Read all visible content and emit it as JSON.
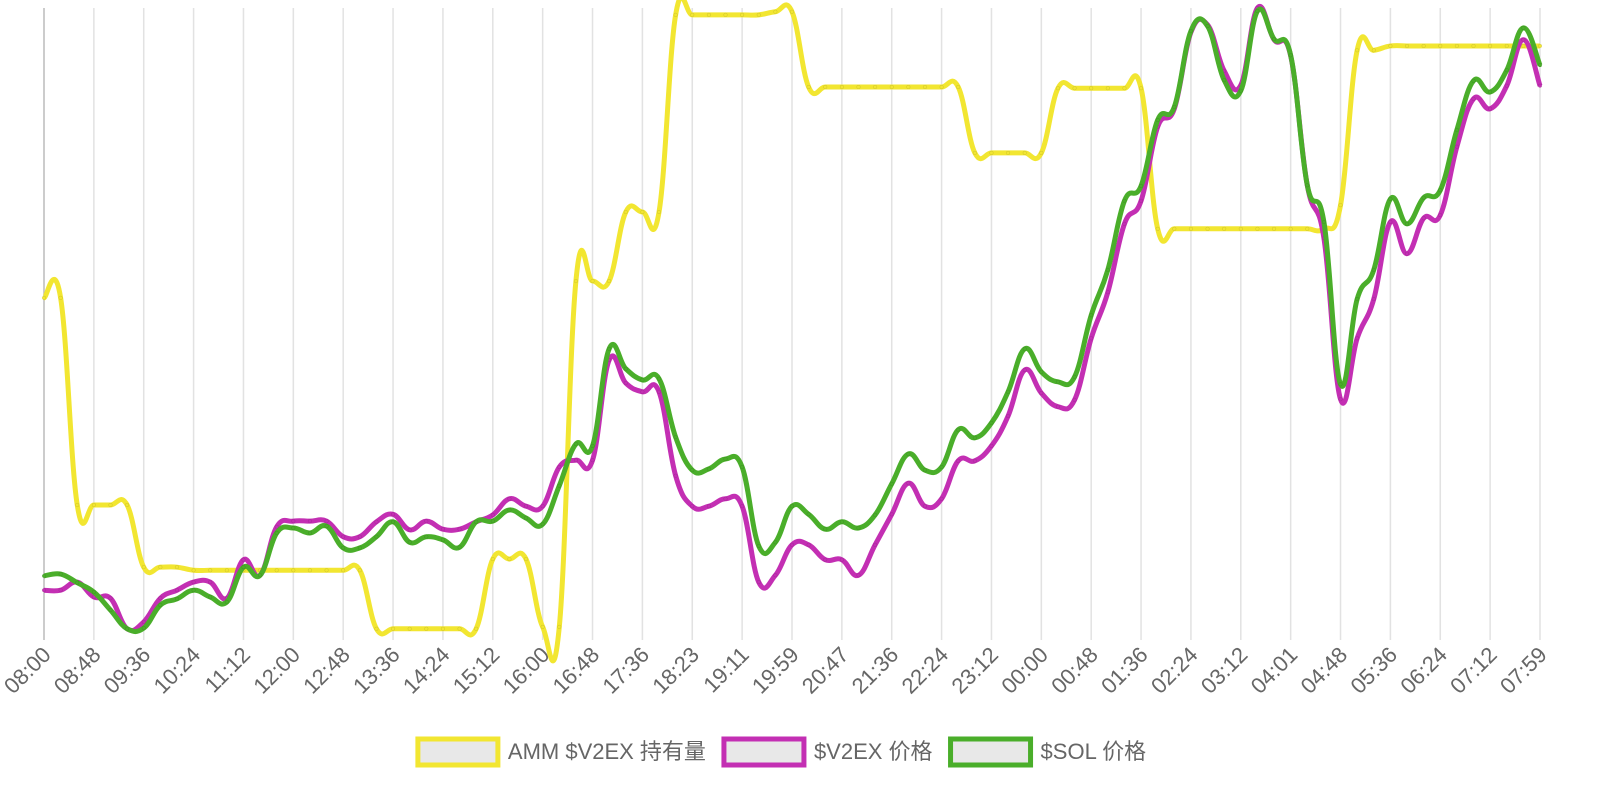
{
  "chart_data": {
    "type": "line",
    "categories": [
      "08:00",
      null,
      null,
      "08:48",
      null,
      null,
      "09:36",
      null,
      null,
      "10:24",
      null,
      null,
      "11:12",
      null,
      null,
      "12:00",
      null,
      null,
      "12:48",
      null,
      null,
      "13:36",
      null,
      null,
      "14:24",
      null,
      null,
      "15:12",
      null,
      null,
      "16:00",
      null,
      null,
      "16:48",
      null,
      null,
      "17:36",
      null,
      null,
      "18:23",
      null,
      null,
      "19:11",
      null,
      null,
      "19:59",
      null,
      null,
      "20:47",
      null,
      null,
      "21:36",
      null,
      null,
      "22:24",
      null,
      null,
      "23:12",
      null,
      null,
      "00:00",
      null,
      null,
      "00:48",
      null,
      null,
      "01:36",
      null,
      null,
      "02:24",
      null,
      null,
      "03:12",
      null,
      null,
      "04:01",
      null,
      null,
      "04:48",
      null,
      null,
      "05:36",
      null,
      null,
      "06:24",
      null,
      null,
      "07:12",
      null,
      null,
      "07:59"
    ],
    "ylim": [
      0,
      100
    ],
    "grid": true,
    "legend": "bottom",
    "series": [
      {
        "name": "AMM $V2EX 持有量",
        "color": "#f2e631",
        "values": [
          53.4,
          53.4,
          20.1,
          20.1,
          20.1,
          20.1,
          10.1,
          10.1,
          10.1,
          9.6,
          9.6,
          9.6,
          9.6,
          9.6,
          9.6,
          9.6,
          9.6,
          9.6,
          9.6,
          9.6,
          0.2,
          0.2,
          0.2,
          0.2,
          0.2,
          0.2,
          0.2,
          11.4,
          11.4,
          11.4,
          0.5,
          0.5,
          56.1,
          56.1,
          56.1,
          67.2,
          67.2,
          67.2,
          98.9,
          98.9,
          98.9,
          98.9,
          98.9,
          98.9,
          99.4,
          99.4,
          87.3,
          87.3,
          87.3,
          87.3,
          87.3,
          87.3,
          87.3,
          87.3,
          87.3,
          87.3,
          76.7,
          76.7,
          76.7,
          76.7,
          76.7,
          87.1,
          87.1,
          87.1,
          87.1,
          87.1,
          87.1,
          64.5,
          64.5,
          64.5,
          64.5,
          64.5,
          64.5,
          64.5,
          64.5,
          64.5,
          64.5,
          64.5,
          68.3,
          93.2,
          93.2,
          93.9,
          93.9,
          93.9,
          93.9,
          93.9,
          93.9,
          93.9,
          93.9,
          93.9,
          93.9
        ]
      },
      {
        "name": "$V2EX 价格",
        "color": "#c32fb3",
        "values": [
          6.4,
          6.4,
          7.7,
          5.3,
          5.1,
          0.2,
          1.3,
          5.1,
          6.4,
          7.7,
          7.7,
          5.1,
          11.3,
          8.8,
          16.6,
          17.5,
          17.5,
          17.5,
          15.0,
          15.0,
          17.4,
          18.6,
          16.1,
          17.5,
          16.2,
          16.2,
          17.4,
          18.5,
          21.1,
          19.9,
          19.9,
          26.2,
          27.3,
          27.3,
          43.4,
          39.7,
          38.3,
          38.3,
          24.8,
          19.9,
          19.9,
          21.1,
          19.9,
          7.7,
          8.8,
          13.7,
          13.7,
          11.3,
          11.3,
          8.8,
          13.7,
          18.6,
          23.6,
          19.9,
          21.1,
          27.2,
          27.2,
          29.6,
          34.4,
          41.8,
          38.1,
          35.9,
          37.0,
          46.9,
          54.3,
          65.3,
          69.0,
          80.9,
          83.8,
          96.1,
          97.3,
          89.9,
          87.6,
          100.0,
          94.9,
          92.3,
          71.5,
          63.0,
          37.1,
          46.9,
          53.2,
          65.6,
          60.5,
          66.2,
          66.7,
          77.7,
          85.4,
          83.8,
          87.5,
          94.9,
          87.5
        ]
      },
      {
        "name": "$SOL 价格",
        "color": "#4aae2a",
        "values": [
          8.7,
          9.0,
          7.6,
          6.1,
          3.2,
          0.2,
          0.3,
          4.0,
          5.0,
          6.4,
          5.3,
          4.5,
          10.1,
          8.8,
          15.6,
          16.4,
          15.6,
          16.7,
          13.2,
          13.2,
          15.0,
          17.4,
          14.1,
          15.0,
          14.5,
          13.3,
          17.4,
          17.5,
          19.3,
          18.0,
          17.0,
          23.2,
          29.9,
          29.6,
          45.2,
          42.0,
          40.2,
          40.4,
          31.0,
          25.7,
          25.9,
          27.5,
          26.2,
          13.5,
          14.1,
          19.9,
          18.6,
          16.2,
          17.4,
          16.4,
          18.5,
          23.5,
          28.3,
          25.7,
          26.2,
          32.2,
          30.9,
          33.3,
          38.3,
          45.2,
          41.5,
          39.9,
          40.7,
          50.6,
          57.9,
          69.0,
          71.4,
          82.0,
          84.1,
          96.3,
          97.1,
          88.4,
          86.7,
          99.5,
          95.0,
          92.4,
          71.5,
          65.6,
          39.5,
          53.2,
          57.9,
          69.3,
          65.3,
          69.5,
          70.7,
          80.4,
          88.3,
          86.5,
          90.0,
          96.8,
          90.8
        ]
      }
    ]
  }
}
